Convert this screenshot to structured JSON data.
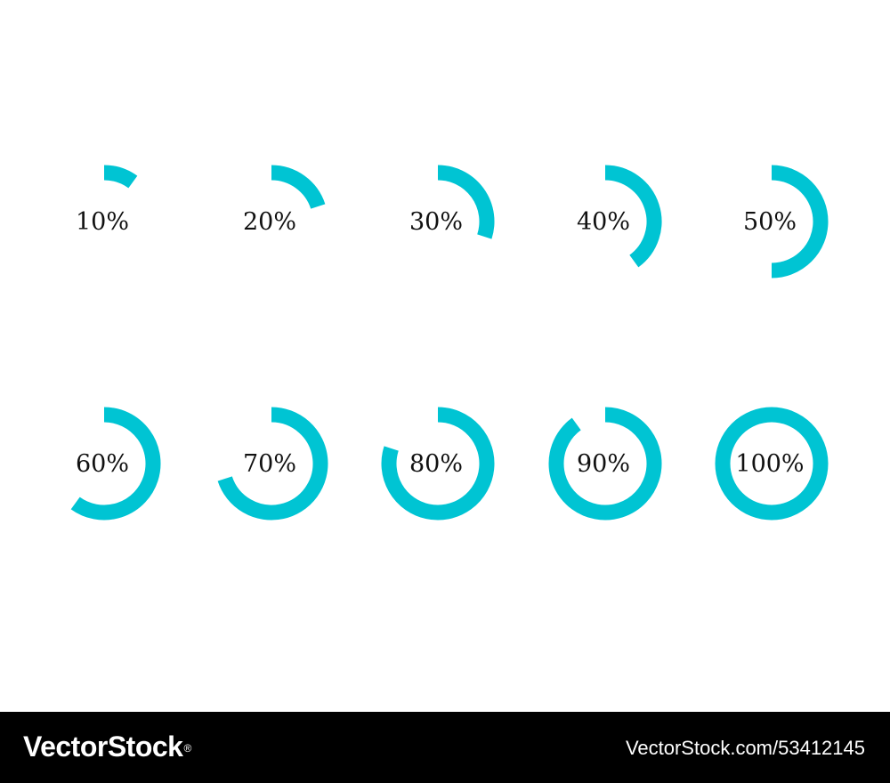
{
  "accent_color": "#00c4d3",
  "rings": [
    {
      "label": "10%",
      "value": 10
    },
    {
      "label": "20%",
      "value": 20
    },
    {
      "label": "30%",
      "value": 30
    },
    {
      "label": "40%",
      "value": 40
    },
    {
      "label": "50%",
      "value": 50
    },
    {
      "label": "60%",
      "value": 60
    },
    {
      "label": "70%",
      "value": 70
    },
    {
      "label": "80%",
      "value": 80
    },
    {
      "label": "90%",
      "value": 90
    },
    {
      "label": "100%",
      "value": 100
    }
  ],
  "footer": {
    "brand": "VectorStock",
    "registered_mark": "®",
    "image_id": "VectorStock.com/53412145"
  }
}
